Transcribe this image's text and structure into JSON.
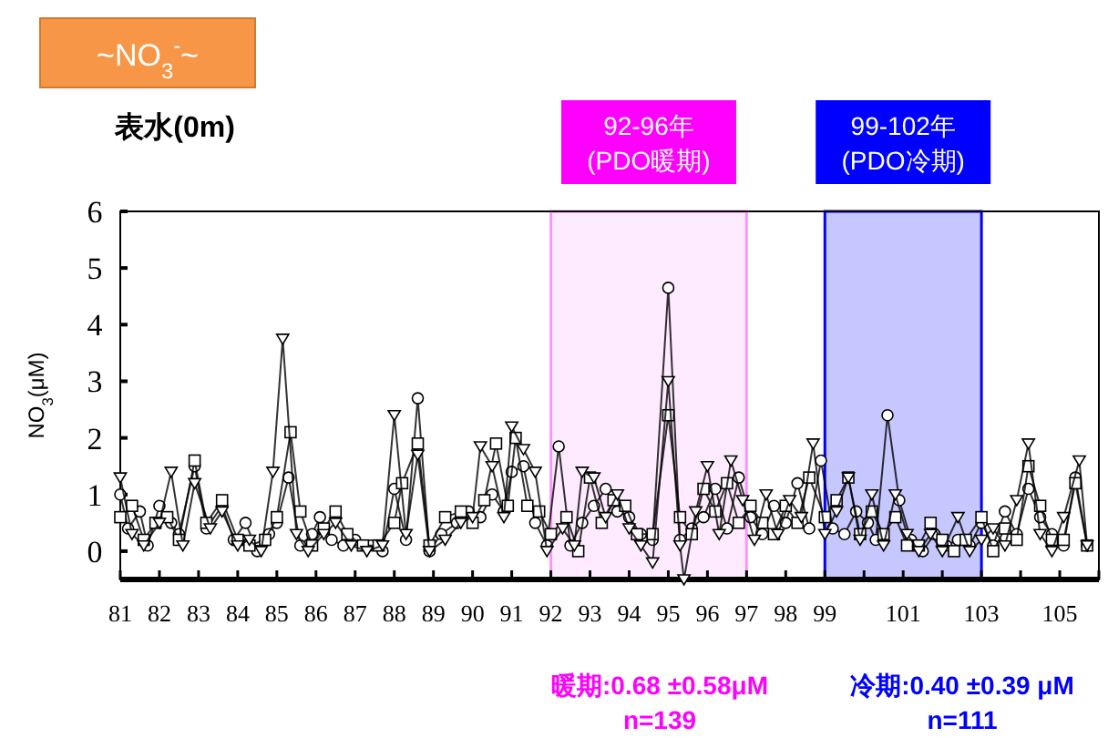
{
  "chart_data": {
    "type": "line",
    "title": "~NO$_{3}$$^{-}$~",
    "subtitle": "表水(0m)",
    "ylabel": "NO$_{3}$(μM)",
    "xlim": [
      81,
      106
    ],
    "ylim": [
      -0.5,
      6
    ],
    "xticks": [
      81,
      82,
      83,
      84,
      85,
      86,
      87,
      88,
      89,
      90,
      91,
      92,
      93,
      94,
      95,
      96,
      97,
      98,
      99,
      {
        "value": 100,
        "label": null
      },
      101,
      {
        "value": 102,
        "label": null
      },
      103,
      {
        "value": 104,
        "label": null
      },
      105,
      {
        "value": 106,
        "label": null
      }
    ],
    "yticks": [
      0,
      1,
      2,
      3,
      4,
      5,
      6
    ],
    "bands": [
      {
        "axis": "x",
        "from": 92,
        "to": 97,
        "label": "92-96年\n(PDO暖期)",
        "color": "#ff00ff"
      },
      {
        "axis": "x",
        "from": 99,
        "to": 103,
        "label": "99-102年\n(PDO冷期)",
        "color": "#0000ff"
      }
    ],
    "annotations": [
      "暖期:0.68 ±0.58μM\nn=139",
      "冷期:0.40 ±0.39 μM\nn=111"
    ],
    "series": [
      {
        "color": "#000000",
        "marker": "circle",
        "x": [
          81.0,
          81.2,
          81.5,
          81.7,
          82.0,
          82.3,
          82.5,
          82.9,
          83.2,
          83.6,
          83.9,
          84.2,
          84.5,
          84.8,
          85.0,
          85.3,
          85.6,
          85.9,
          86.1,
          86.4,
          86.7,
          87.0,
          87.4,
          87.7,
          88.0,
          88.3,
          88.6,
          88.9,
          89.2,
          89.6,
          89.9,
          90.2,
          90.5,
          90.8,
          91.0,
          91.3,
          91.6,
          91.9,
          92.2,
          92.5,
          92.8,
          93.1,
          93.4,
          93.7,
          94.0,
          94.3,
          94.6,
          95.0,
          95.3,
          95.6,
          95.9,
          96.2,
          96.5,
          96.8,
          97.1,
          97.4,
          97.7,
          98.0,
          98.3,
          98.6,
          98.9,
          99.2,
          99.5,
          99.8,
          100.1,
          100.3,
          100.6,
          100.9,
          101.2,
          101.5,
          101.8,
          102.1,
          102.4,
          102.7,
          103.0,
          103.3,
          103.6,
          103.9,
          104.2,
          104.5,
          104.8,
          105.1,
          105.4,
          105.7
        ],
        "values": [
          1.0,
          0.4,
          0.7,
          0.1,
          0.8,
          0.5,
          0.3,
          1.5,
          0.4,
          0.8,
          0.2,
          0.5,
          0.0,
          0.3,
          0.5,
          1.3,
          0.1,
          0.3,
          0.6,
          0.2,
          0.1,
          0.2,
          0.1,
          0.0,
          1.1,
          0.2,
          2.7,
          0.0,
          0.3,
          0.5,
          0.7,
          0.6,
          1.0,
          0.7,
          1.4,
          1.5,
          0.5,
          0.1,
          1.85,
          0.1,
          0.5,
          0.8,
          1.1,
          0.7,
          0.6,
          0.3,
          0.2,
          4.65,
          0.2,
          0.4,
          0.6,
          1.1,
          0.4,
          1.3,
          0.6,
          0.3,
          0.8,
          0.5,
          1.2,
          0.4,
          1.6,
          0.4,
          0.3,
          0.7,
          0.5,
          0.2,
          2.4,
          0.9,
          0.2,
          0.0,
          0.3,
          0.1,
          0.2,
          0.1,
          0.5,
          0.1,
          0.7,
          0.3,
          1.1,
          0.6,
          0.3,
          0.1,
          1.3,
          0.1
        ]
      },
      {
        "color": "#000000",
        "marker": "square",
        "x": [
          81.0,
          81.3,
          81.6,
          81.9,
          82.2,
          82.5,
          82.9,
          83.2,
          83.6,
          84.0,
          84.3,
          84.7,
          85.0,
          85.35,
          85.6,
          85.9,
          86.2,
          86.5,
          86.8,
          87.2,
          87.6,
          88.0,
          88.2,
          88.6,
          88.9,
          89.3,
          89.7,
          90.0,
          90.3,
          90.6,
          90.9,
          91.1,
          91.4,
          91.7,
          92.0,
          92.4,
          92.7,
          93.0,
          93.3,
          93.6,
          93.9,
          94.2,
          94.6,
          95.0,
          95.3,
          95.6,
          95.9,
          96.2,
          96.5,
          96.8,
          97.1,
          97.4,
          97.7,
          98.0,
          98.3,
          98.6,
          99.0,
          99.3,
          99.6,
          99.9,
          100.2,
          100.5,
          100.8,
          101.1,
          101.4,
          101.7,
          102.0,
          102.3,
          102.6,
          103.0,
          103.3,
          103.6,
          103.9,
          104.2,
          104.5,
          104.8,
          105.1,
          105.4,
          105.7
        ],
        "values": [
          0.6,
          0.8,
          0.2,
          0.5,
          0.6,
          0.2,
          1.6,
          0.5,
          0.9,
          0.2,
          0.1,
          0.2,
          0.6,
          2.1,
          0.7,
          0.1,
          0.4,
          0.7,
          0.3,
          0.1,
          0.1,
          0.5,
          1.2,
          1.9,
          0.1,
          0.6,
          0.7,
          0.5,
          0.9,
          1.9,
          0.8,
          2.0,
          0.8,
          0.7,
          0.3,
          0.6,
          0.0,
          1.3,
          0.5,
          0.9,
          0.8,
          0.3,
          0.3,
          2.4,
          0.6,
          0.3,
          1.1,
          0.7,
          1.2,
          0.5,
          0.8,
          0.5,
          0.3,
          0.8,
          0.5,
          1.3,
          0.6,
          0.9,
          1.3,
          0.3,
          0.7,
          0.3,
          0.6,
          0.1,
          0.1,
          0.5,
          0.2,
          0.0,
          0.2,
          0.6,
          0.0,
          0.4,
          0.2,
          1.5,
          0.8,
          0.2,
          0.2,
          1.2,
          0.1
        ]
      },
      {
        "color": "#000000",
        "marker": "triangle",
        "x": [
          81.0,
          81.3,
          81.6,
          82.0,
          82.3,
          82.6,
          82.9,
          83.3,
          83.6,
          84.0,
          84.3,
          84.6,
          84.9,
          85.15,
          85.5,
          85.8,
          86.2,
          86.5,
          86.9,
          87.3,
          87.7,
          88.0,
          88.3,
          88.6,
          88.9,
          89.3,
          89.7,
          90.0,
          90.2,
          90.5,
          90.8,
          91.0,
          91.3,
          91.6,
          91.9,
          92.3,
          92.6,
          92.8,
          93.1,
          93.4,
          93.7,
          94.0,
          94.3,
          94.6,
          95.0,
          95.3,
          95.4,
          95.7,
          96.0,
          96.3,
          96.6,
          96.9,
          97.2,
          97.5,
          97.8,
          98.1,
          98.4,
          98.7,
          99.0,
          99.3,
          99.6,
          99.9,
          100.2,
          100.5,
          100.8,
          101.1,
          101.4,
          101.7,
          102.0,
          102.4,
          102.7,
          103.0,
          103.3,
          103.6,
          103.9,
          104.2,
          104.5,
          104.8,
          105.1,
          105.5,
          105.7
        ],
        "values": [
          1.3,
          0.3,
          0.1,
          0.5,
          1.4,
          0.1,
          1.2,
          0.4,
          0.7,
          0.1,
          0.2,
          0.0,
          1.4,
          3.75,
          0.3,
          0.0,
          0.3,
          0.5,
          0.1,
          0.0,
          0.1,
          2.4,
          0.3,
          1.7,
          0.0,
          0.2,
          0.5,
          0.6,
          1.85,
          1.5,
          0.6,
          2.2,
          1.8,
          1.4,
          0.0,
          0.4,
          0.1,
          1.4,
          1.3,
          0.6,
          1.0,
          0.4,
          0.1,
          -0.2,
          3.0,
          0.1,
          -0.5,
          0.7,
          1.5,
          0.3,
          1.6,
          0.9,
          0.2,
          1.0,
          0.3,
          0.9,
          0.6,
          1.9,
          0.3,
          0.7,
          1.3,
          0.2,
          1.0,
          0.1,
          1.0,
          0.3,
          0.0,
          0.3,
          0.0,
          0.6,
          0.0,
          0.2,
          0.4,
          0.1,
          0.9,
          1.9,
          0.3,
          0.0,
          0.6,
          1.6,
          0.1
        ]
      }
    ]
  }
}
